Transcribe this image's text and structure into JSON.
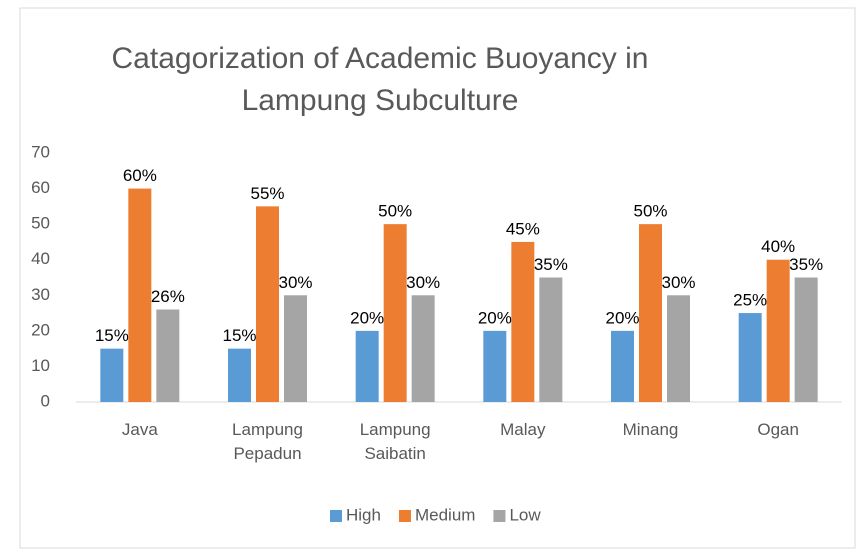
{
  "chart_data": {
    "type": "bar",
    "title": "Catagorization of Academic Buoyancy in Lampung Subculture",
    "categories": [
      "Java",
      "Lampung Pepadun",
      "Lampung Saibatin",
      "Malay",
      "Minang",
      "Ogan"
    ],
    "series": [
      {
        "name": "High",
        "color": "#5b9bd5",
        "values": [
          15,
          15,
          20,
          20,
          20,
          25
        ],
        "value_labels": [
          "15%",
          "15%",
          "20%",
          "20%",
          "20%",
          "25%"
        ]
      },
      {
        "name": "Medium",
        "color": "#ed7d31",
        "values": [
          60,
          55,
          50,
          45,
          50,
          40
        ],
        "value_labels": [
          "60%",
          "55%",
          "50%",
          "45%",
          "50%",
          "40%"
        ]
      },
      {
        "name": "Low",
        "color": "#a5a5a5",
        "values": [
          26,
          30,
          30,
          35,
          30,
          35
        ],
        "value_labels": [
          "26%",
          "30%",
          "30%",
          "35%",
          "30%",
          "35%"
        ]
      }
    ],
    "ylim": [
      0,
      70
    ],
    "yticks": [
      0,
      10,
      20,
      30,
      40,
      50,
      60,
      70
    ],
    "grid": false,
    "legend": "bottom"
  }
}
